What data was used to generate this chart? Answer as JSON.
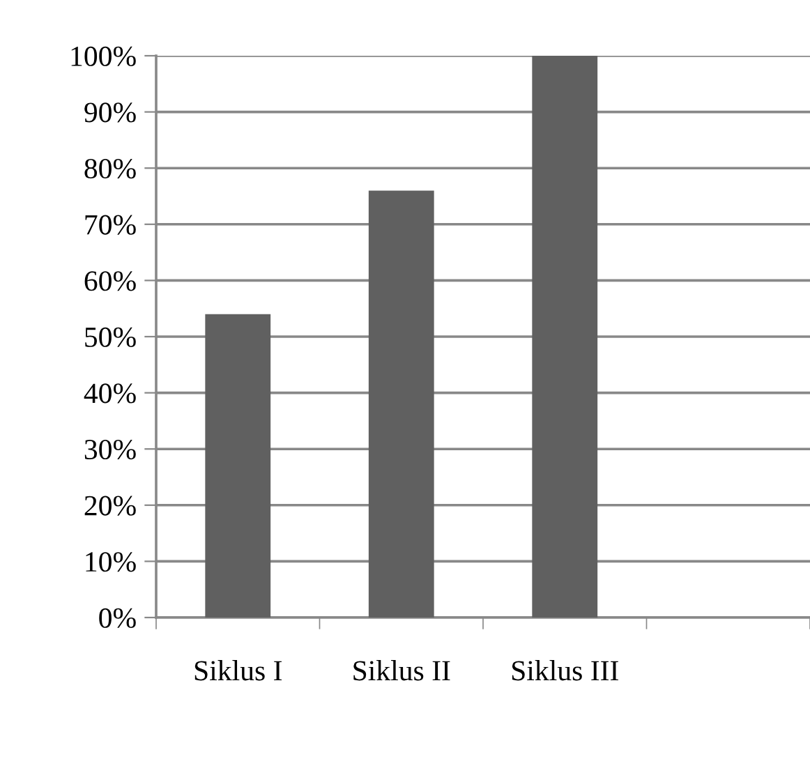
{
  "chart_data": {
    "type": "bar",
    "categories": [
      "Siklus I",
      "Siklus II",
      "Siklus III",
      null
    ],
    "values": [
      54,
      76,
      100,
      null
    ],
    "color": "#606060",
    "ylim": [
      0,
      100
    ],
    "yticks": [
      {
        "value": 0,
        "label": "0%"
      },
      {
        "value": 10,
        "label": "10%"
      },
      {
        "value": 20,
        "label": "20%"
      },
      {
        "value": 30,
        "label": "30%"
      },
      {
        "value": 40,
        "label": "40%"
      },
      {
        "value": 50,
        "label": "50%"
      },
      {
        "value": 60,
        "label": "60%"
      },
      {
        "value": 70,
        "label": "70%"
      },
      {
        "value": 80,
        "label": "80%"
      },
      {
        "value": 90,
        "label": "90%"
      },
      {
        "value": 100,
        "label": "100%"
      }
    ],
    "grid": "y"
  }
}
